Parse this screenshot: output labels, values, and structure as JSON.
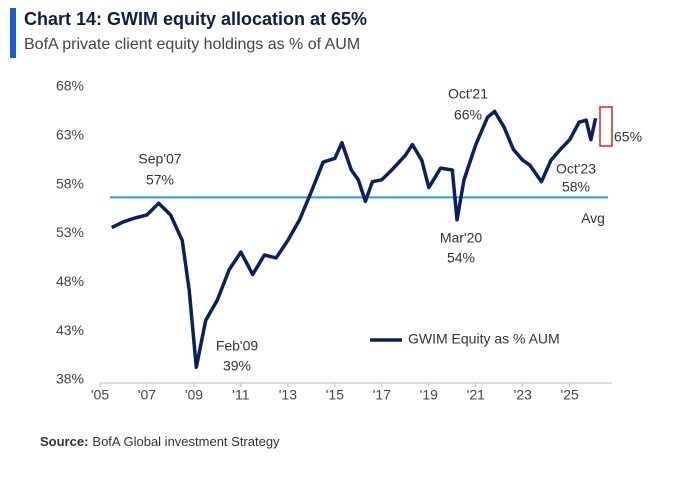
{
  "chart_data": {
    "type": "line",
    "title": "Chart 14: GWIM equity allocation at 65%",
    "subtitle": "BofA private client equity holdings as % of AUM",
    "source_label": "Source:",
    "source": "BofA Global investment Strategy",
    "xlim": [
      2005,
      2026.8
    ],
    "ylim": [
      38,
      68
    ],
    "xticks": [
      {
        "value": 2005,
        "label": "'05"
      },
      {
        "value": 2007,
        "label": "'07"
      },
      {
        "value": 2009,
        "label": "'09"
      },
      {
        "value": 2011,
        "label": "'11"
      },
      {
        "value": 2013,
        "label": "'13"
      },
      {
        "value": 2015,
        "label": "'15"
      },
      {
        "value": 2017,
        "label": "'17"
      },
      {
        "value": 2019,
        "label": "'19"
      },
      {
        "value": 2021,
        "label": "'21"
      },
      {
        "value": 2023,
        "label": "'23"
      },
      {
        "value": 2025,
        "label": "'25"
      }
    ],
    "yticks": [
      {
        "value": 38,
        "label": "38%"
      },
      {
        "value": 43,
        "label": "43%"
      },
      {
        "value": 48,
        "label": "48%"
      },
      {
        "value": 53,
        "label": "53%"
      },
      {
        "value": 58,
        "label": "58%"
      },
      {
        "value": 63,
        "label": "63%"
      },
      {
        "value": 68,
        "label": "68%"
      }
    ],
    "series": [
      {
        "name": "GWIM Equity as % AUM",
        "color": "#0b1f5c",
        "x": [
          2005.5,
          2006,
          2006.5,
          2007,
          2007.5,
          2008,
          2008.5,
          2008.8,
          2009.1,
          2009.5,
          2010,
          2010.5,
          2011,
          2011.5,
          2012,
          2012.5,
          2013,
          2013.5,
          2014,
          2014.5,
          2015,
          2015.3,
          2015.7,
          2016,
          2016.3,
          2016.6,
          2017,
          2017.5,
          2018,
          2018.3,
          2018.7,
          2019,
          2019.5,
          2020,
          2020.2,
          2020.5,
          2021,
          2021.5,
          2021.8,
          2022.2,
          2022.6,
          2023,
          2023.3,
          2023.8,
          2024.2,
          2024.6,
          2025,
          2025.4,
          2025.7,
          2025.9,
          2026.1
        ],
        "values": [
          53.6,
          54.2,
          54.6,
          54.9,
          56.1,
          54.9,
          52.3,
          47.2,
          39.3,
          44.1,
          46.2,
          49.3,
          51.1,
          48.8,
          50.8,
          50.5,
          52.3,
          54.4,
          57.3,
          60.3,
          60.7,
          62.3,
          59.5,
          58.5,
          56.3,
          58.3,
          58.5,
          59.7,
          61.0,
          62.1,
          60.5,
          57.7,
          59.7,
          59.5,
          54.4,
          58.5,
          62.1,
          64.9,
          65.5,
          63.9,
          61.6,
          60.5,
          60.0,
          58.3,
          60.5,
          61.6,
          62.6,
          64.4,
          64.6,
          62.6,
          64.8
        ]
      }
    ],
    "reference_line": {
      "value": 56.7,
      "label": "Avg",
      "color": "#1ea0d6"
    },
    "annotations": [
      "Sep'07",
      "57%",
      "Feb'09",
      "39%",
      "Mar'20",
      "54%",
      "Oct'21",
      "66%",
      "Oct'23",
      "58%",
      "65%"
    ]
  }
}
